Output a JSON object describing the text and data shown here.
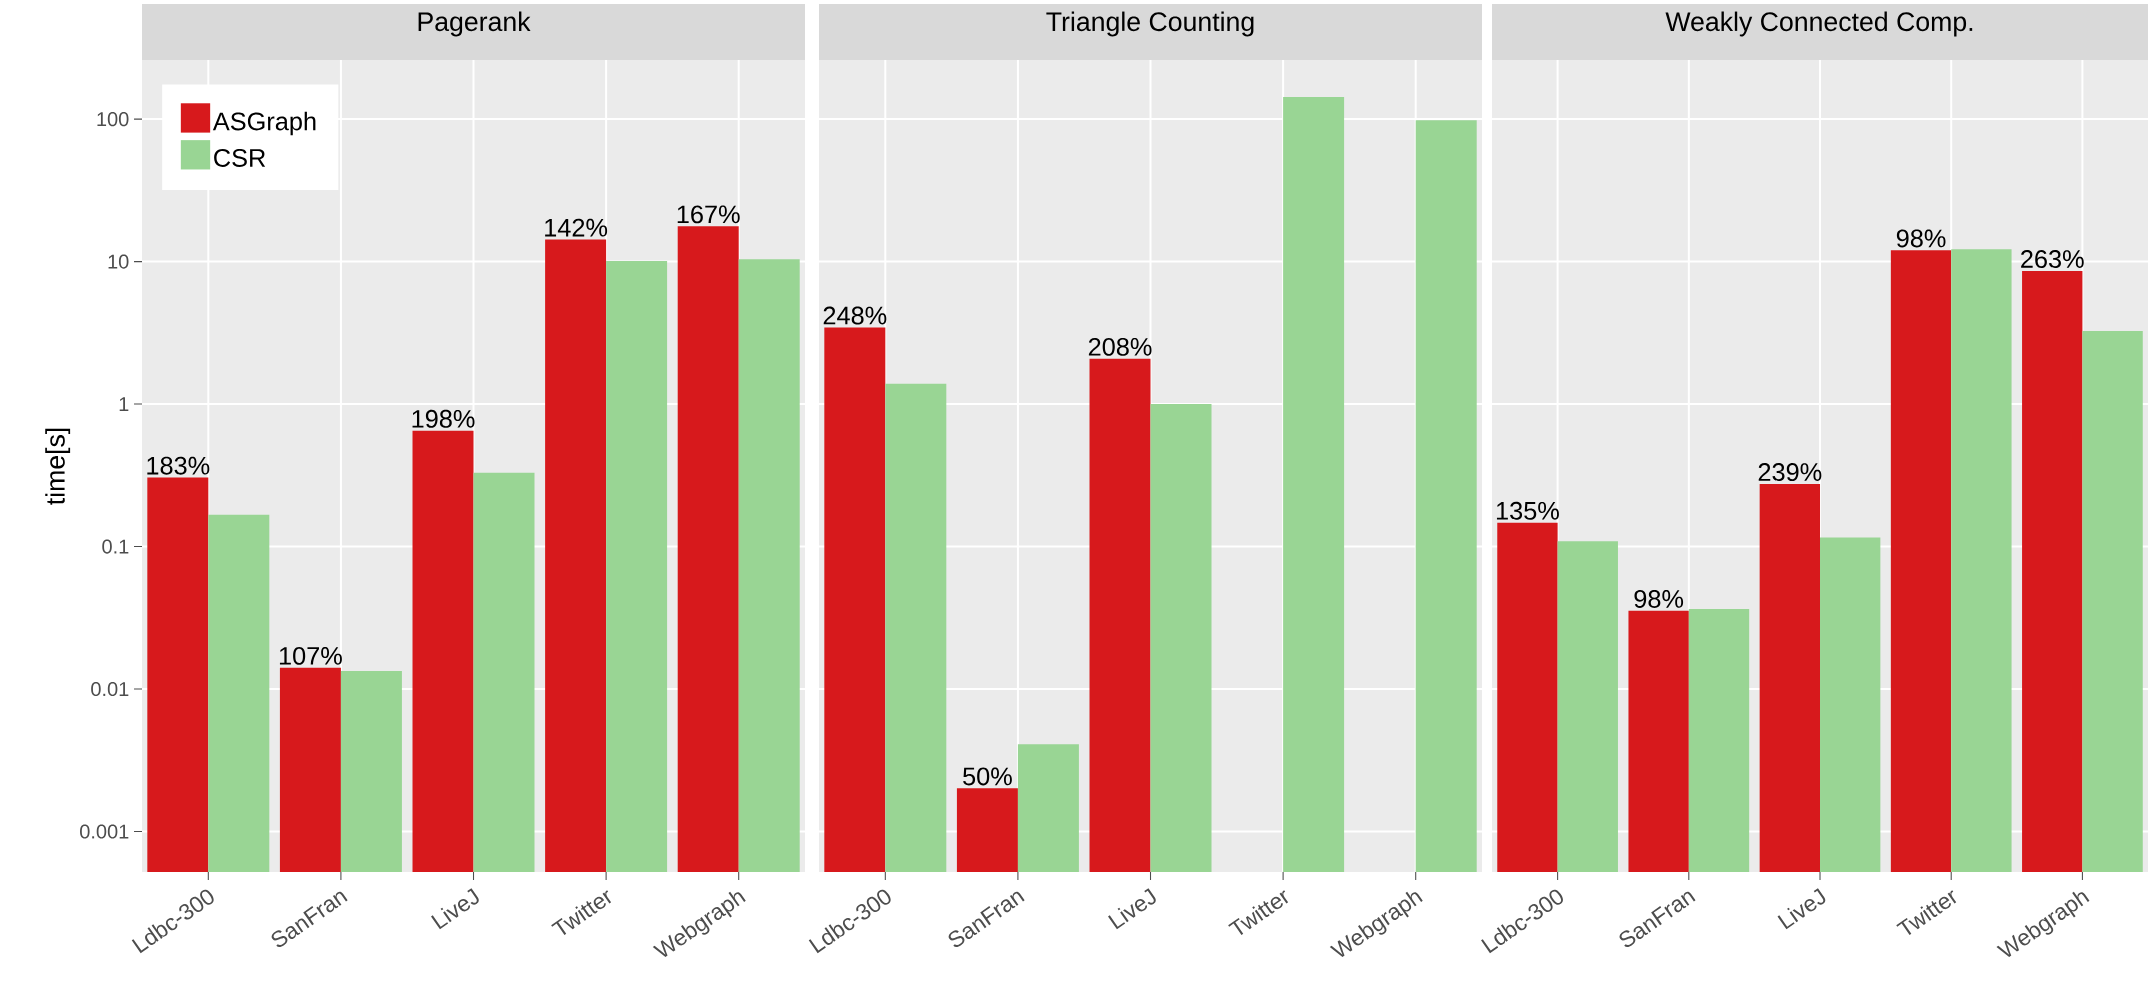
{
  "chart_data": [
    {
      "type": "bar",
      "title": "Pagerank",
      "ylabel": "time[s]",
      "categories": [
        "Ldbc-300",
        "SanFran",
        "LiveJ",
        "Twitter",
        "Webgraph"
      ],
      "log": true,
      "grid": true,
      "legend": "top left",
      "ylim": [
        0.00052,
        260
      ],
      "yticks": [
        0.001,
        0.01,
        0.1,
        1,
        10,
        100
      ],
      "series": [
        {
          "name": "ASGraph",
          "color": "#d7191c",
          "values": [
            0.305,
            0.0141,
            0.65,
            14.3,
            17.7
          ]
        },
        {
          "name": "CSR",
          "color": "#99d594",
          "values": [
            0.167,
            0.0134,
            0.33,
            10.1,
            10.4
          ]
        }
      ],
      "annotations": [
        {
          "text": "183%",
          "x": "Ldbc-300",
          "y": 0.305
        },
        {
          "text": "107%",
          "x": "SanFran",
          "y": 0.0141
        },
        {
          "text": "198%",
          "x": "LiveJ",
          "y": 0.65
        },
        {
          "text": "142%",
          "x": "Twitter",
          "y": 14.3
        },
        {
          "text": "167%",
          "x": "Webgraph",
          "y": 17.7
        }
      ]
    },
    {
      "type": "bar",
      "title": "Triangle Counting",
      "categories": [
        "Ldbc-300",
        "SanFran",
        "LiveJ",
        "Twitter",
        "Webgraph"
      ],
      "log": true,
      "grid": true,
      "tick_labels": "x",
      "ylim": [
        0.00052,
        260
      ],
      "yticks": [
        0.001,
        0.01,
        0.1,
        1,
        10,
        100
      ],
      "series": [
        {
          "color": "#d7191c",
          "values": [
            3.45,
            0.00201,
            2.08,
            null,
            null
          ]
        },
        {
          "color": "#99d594",
          "values": [
            1.39,
            0.0041,
            1.0,
            143,
            98
          ]
        }
      ],
      "annotations": [
        {
          "text": "248%",
          "x": "Ldbc-300",
          "y": 3.45
        },
        {
          "text": "50%",
          "x": "SanFran",
          "y": 0.00201
        },
        {
          "text": "208%",
          "x": "LiveJ",
          "y": 2.08
        }
      ]
    },
    {
      "type": "bar",
      "title": "Weakly Connected Comp.",
      "categories": [
        "Ldbc-300",
        "SanFran",
        "LiveJ",
        "Twitter",
        "Webgraph"
      ],
      "log": true,
      "grid": true,
      "tick_labels": "x",
      "ylim": [
        0.00052,
        260
      ],
      "yticks": [
        0.001,
        0.01,
        0.1,
        1,
        10,
        100
      ],
      "series": [
        {
          "color": "#d7191c",
          "values": [
            0.147,
            0.0354,
            0.275,
            12.0,
            8.6
          ]
        },
        {
          "color": "#99d594",
          "values": [
            0.109,
            0.0365,
            0.116,
            12.2,
            3.26
          ]
        }
      ],
      "annotations": [
        {
          "text": "135%",
          "x": "Ldbc-300",
          "y": 0.147
        },
        {
          "text": "98%",
          "x": "SanFran",
          "y": 0.0354
        },
        {
          "text": "239%",
          "x": "LiveJ",
          "y": 0.275
        },
        {
          "text": "98%",
          "x": "Twitter",
          "y": 12.0
        },
        {
          "text": "263%",
          "x": "Webgraph",
          "y": 8.6
        }
      ]
    }
  ]
}
